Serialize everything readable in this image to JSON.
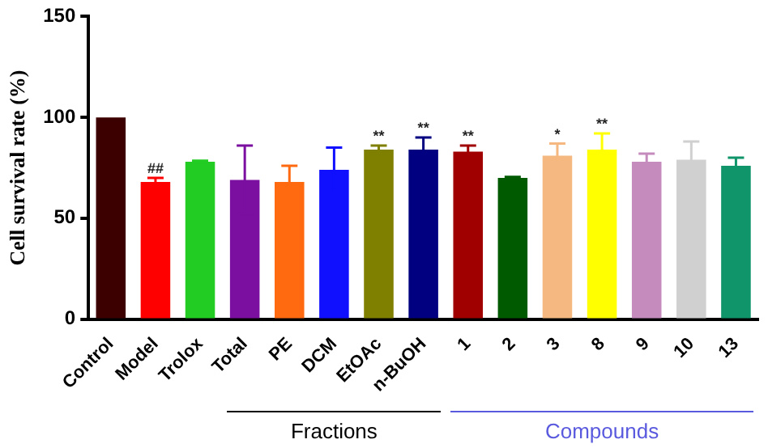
{
  "chart_data": {
    "type": "bar",
    "ylabel": "Cell survival rate (%)",
    "categories": [
      "Control",
      "Model",
      "Trolox",
      "Total",
      "PE",
      "DCM",
      "EtOAc",
      "n-BuOH",
      "1",
      "2",
      "3",
      "8",
      "9",
      "10",
      "13"
    ],
    "values": [
      100,
      68,
      78,
      69,
      68,
      74,
      84,
      84,
      83,
      70,
      81,
      84,
      78,
      79,
      76
    ],
    "errors": [
      null,
      2,
      0.5,
      17,
      8,
      11,
      2,
      6,
      3,
      0.5,
      6,
      8,
      4,
      9,
      4
    ],
    "colors": [
      "#3d0000",
      "#ff0000",
      "#22cc22",
      "#7a0fa0",
      "#ff6a10",
      "#1010ff",
      "#7f7f00",
      "#000080",
      "#a00000",
      "#005a00",
      "#f4b880",
      "#ffff00",
      "#c58bbd",
      "#d0d0d0",
      "#10956a"
    ],
    "ylim": [
      0,
      150
    ],
    "yticks": [
      0,
      50,
      100,
      150
    ],
    "grid": false,
    "legend": false,
    "annotations": [
      {
        "text": "##",
        "x": "Model",
        "y": 70
      },
      {
        "text": "**",
        "x": "EtOAc",
        "y": 86
      },
      {
        "text": "**",
        "x": "n-BuOH",
        "y": 90
      },
      {
        "text": "**",
        "x": "1",
        "y": 86
      },
      {
        "text": "*",
        "x": "3",
        "y": 87
      },
      {
        "text": "**",
        "x": "8",
        "y": 92
      },
      "Fractions",
      "Compounds"
    ]
  }
}
